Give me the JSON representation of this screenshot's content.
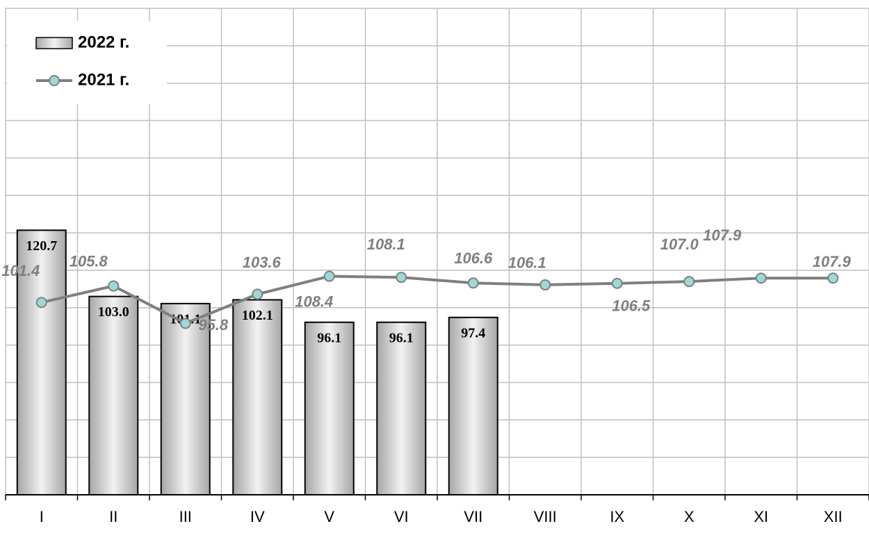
{
  "chart_data": {
    "type": "bar_line",
    "categories": [
      "I",
      "II",
      "III",
      "IV",
      "V",
      "VI",
      "VII",
      "VIII",
      "IX",
      "X",
      "XI",
      "XII"
    ],
    "series": [
      {
        "name": "2022 г.",
        "type": "bar",
        "color": "#d9d9d9",
        "values": [
          120.7,
          103.0,
          101.1,
          102.1,
          96.1,
          96.1,
          97.4,
          null,
          null,
          null,
          null,
          null
        ]
      },
      {
        "name": "2021 г.",
        "type": "line",
        "color": "#7f7f7f",
        "marker_color": "#9dd9d9",
        "values": [
          101.4,
          105.8,
          95.8,
          103.6,
          108.4,
          108.1,
          106.6,
          106.1,
          106.5,
          107.0,
          107.9,
          107.9
        ]
      }
    ],
    "ylim": [
      50,
      180
    ],
    "yticks": [
      50,
      60,
      70,
      80,
      90,
      100,
      110,
      120,
      130,
      140,
      150,
      160,
      170,
      180
    ],
    "ytick_labels": false,
    "grid": true,
    "legend": "top-left"
  }
}
